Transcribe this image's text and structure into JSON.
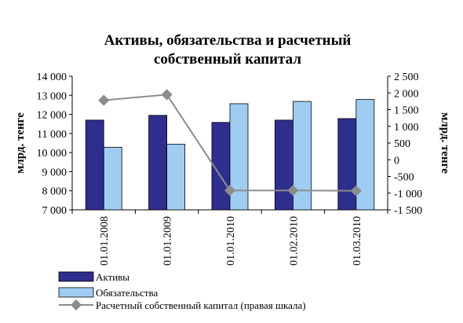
{
  "chart_data": {
    "type": "bar",
    "title": [
      "Активы, обязательства и расчетный",
      "собственный капитал"
    ],
    "categories": [
      "01.01.2008",
      "01.01.2009",
      "01.01.2010",
      "01.02.2010",
      "01.03.2010"
    ],
    "ylabel_left": "млрд. тенге",
    "ylabel_right": "млрд. тенге",
    "ylim_left": [
      7000,
      14000
    ],
    "yticks_left": [
      "14 000",
      "13 000",
      "12 000",
      "11 000",
      "10 000",
      "9 000",
      "8 000",
      "7 000"
    ],
    "ylim_right": [
      -1500,
      2500
    ],
    "yticks_right": [
      "2 500",
      "2 000",
      "1 500",
      "1 000",
      "500",
      "0",
      "-500",
      "-1 000",
      "-1 500"
    ],
    "grid": false,
    "legend_position": "bottom-left",
    "series": [
      {
        "name": "Активы",
        "type": "bar",
        "axis": "left",
        "color": "#2e2e8f",
        "values": [
          11700,
          11950,
          11580,
          11700,
          11780
        ]
      },
      {
        "name": "Обязательства",
        "type": "bar",
        "axis": "left",
        "color": "#9fcdf2",
        "values": [
          10280,
          10440,
          12560,
          12680,
          12780
        ]
      },
      {
        "name": "Расчетный собственный капитал (правая шкала)",
        "type": "line",
        "axis": "right",
        "color": "#8c8c8c",
        "values": [
          1780,
          1950,
          -920,
          -920,
          -930
        ]
      }
    ]
  }
}
